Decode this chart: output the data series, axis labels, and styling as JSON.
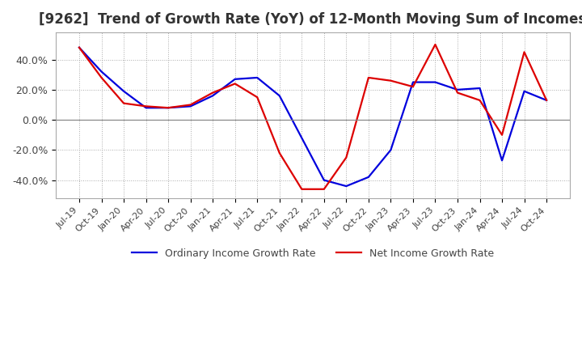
{
  "title": "[9262]  Trend of Growth Rate (YoY) of 12-Month Moving Sum of Incomes",
  "title_fontsize": 12,
  "ylim": [
    -0.52,
    0.58
  ],
  "yticks": [
    -0.4,
    -0.2,
    0.0,
    0.2,
    0.4
  ],
  "ytick_labels": [
    "-40.0%",
    "-20.0%",
    "0.0%",
    "20.0%",
    "40.0%"
  ],
  "background_color": "#ffffff",
  "grid_color": "#aaaaaa",
  "ordinary_color": "#0000dd",
  "net_color": "#dd0000",
  "x_labels": [
    "Jul-19",
    "Oct-19",
    "Jan-20",
    "Apr-20",
    "Jul-20",
    "Oct-20",
    "Jan-21",
    "Apr-21",
    "Jul-21",
    "Oct-21",
    "Jan-22",
    "Apr-22",
    "Jul-22",
    "Oct-22",
    "Jan-23",
    "Apr-23",
    "Jul-23",
    "Oct-23",
    "Jan-24",
    "Apr-24",
    "Jul-24",
    "Oct-24"
  ],
  "ordinary_income_growth": [
    0.48,
    0.32,
    0.19,
    0.08,
    0.08,
    0.09,
    0.16,
    0.27,
    0.28,
    0.16,
    -0.12,
    -0.4,
    -0.44,
    -0.38,
    -0.2,
    0.25,
    0.25,
    0.2,
    0.21,
    -0.27,
    0.19,
    0.13
  ],
  "net_income_growth": [
    0.48,
    0.28,
    0.11,
    0.09,
    0.08,
    0.1,
    0.18,
    0.24,
    0.15,
    -0.22,
    -0.46,
    -0.46,
    -0.25,
    0.28,
    0.26,
    0.22,
    0.5,
    0.18,
    0.13,
    -0.1,
    0.45,
    0.13
  ],
  "legend_labels": [
    "Ordinary Income Growth Rate",
    "Net Income Growth Rate"
  ],
  "line_width": 1.6
}
